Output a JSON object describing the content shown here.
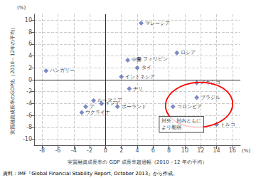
{
  "chart_data": {
    "type": "scatter",
    "x": [
      4.5,
      9.0,
      2.8,
      4.2,
      4.0,
      2.0,
      -7.5,
      3.0,
      -1.5,
      -0.5,
      1.5,
      -2.5,
      -3.0,
      11.5,
      11.5,
      8.5,
      14.0
    ],
    "values": [
      9.5,
      4.5,
      3.3,
      3.5,
      2.0,
      0.5,
      1.5,
      -1.5,
      -3.5,
      -4.0,
      -4.5,
      -4.5,
      -5.5,
      -0.5,
      -3.0,
      -4.5,
      -7.5
    ],
    "point_labels": [
      "マレーシア",
      "ロシア",
      "中国",
      "フィリピン",
      "タイ",
      "インドネシア",
      "ハンガリー",
      "チリ",
      "ルーマニア",
      "インド",
      "ポーランド",
      "ア",
      "ウクライナ",
      "メキシコ",
      "ブラジル",
      "コロンビア",
      "トルコ"
    ],
    "color": "#5b6eb5",
    "marker": "diamond",
    "xlabel": "実質融資成長率の GDP 成長率超過幅（2010－12 年の平均）",
    "ylabel": "実質融資成長率のGDP比（2010－12年の平均）",
    "x_unit": "(%)",
    "y_unit": "(%)",
    "xlim": [
      -9,
      17
    ],
    "ylim": [
      -11,
      11
    ],
    "xticks": [
      -8,
      -6,
      -4,
      -2,
      0,
      2,
      4,
      6,
      8,
      10,
      12,
      14,
      16
    ],
    "yticks": [
      -10,
      -8,
      -6,
      -4,
      -2,
      0,
      2,
      4,
      6,
      8,
      10
    ],
    "grid": true,
    "annotations": [
      {
        "text": "対外、対内ともに\nより脆弱",
        "x": 6.8,
        "y": -7.5
      }
    ],
    "ellipse": {
      "x": 11.8,
      "y": -4.2,
      "width": 8.5,
      "height": 7.5,
      "color": "red"
    },
    "source": "資料：IMF『Global Financial Stability Report, October 2013』から作成。"
  }
}
